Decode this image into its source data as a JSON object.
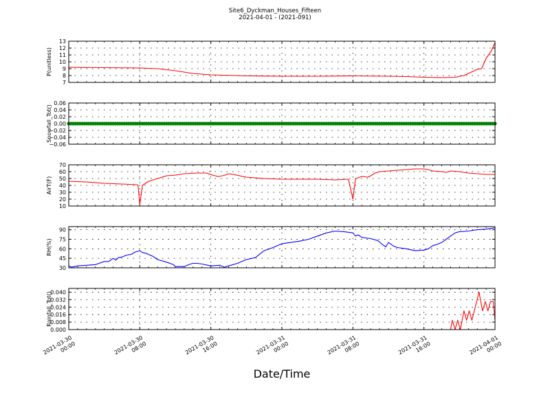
{
  "header": {
    "title": "Site6_Dyckman_Houses_Fifteen",
    "subtitle": "2021-04-01 - (2021-091)"
  },
  "xlabel": "Date/Time",
  "chart_data": {
    "type": "line",
    "x_ticks": [
      {
        "line1": "2021-03-30",
        "line2": "00:00",
        "h": 0
      },
      {
        "line1": "2021-03-30",
        "line2": "08:00",
        "h": 8
      },
      {
        "line1": "2021-03-30",
        "line2": "16:00",
        "h": 16
      },
      {
        "line1": "2021-03-31",
        "line2": "00:00",
        "h": 24
      },
      {
        "line1": "2021-03-31",
        "line2": "08:00",
        "h": 32
      },
      {
        "line1": "2021-03-31",
        "line2": "16:00",
        "h": 40
      },
      {
        "line1": "2021-04-01",
        "line2": "00:00",
        "h": 48
      }
    ],
    "xlim_hours": [
      0,
      48
    ],
    "panels": [
      {
        "ylabel": "P(unitless)",
        "color": "#ff0000",
        "ylim": [
          7,
          13
        ],
        "yticks": [
          "7",
          "8",
          "9",
          "10",
          "11",
          "12",
          "13"
        ],
        "ytick_values": [
          7,
          8,
          9,
          10,
          11,
          12,
          13
        ],
        "points": [
          [
            0,
            9.2
          ],
          [
            4,
            9.15
          ],
          [
            8,
            9.1
          ],
          [
            10,
            9.0
          ],
          [
            12,
            8.7
          ],
          [
            14,
            8.3
          ],
          [
            16,
            8.1
          ],
          [
            20,
            7.95
          ],
          [
            24,
            7.9
          ],
          [
            28,
            7.9
          ],
          [
            32,
            7.95
          ],
          [
            36,
            7.9
          ],
          [
            38,
            7.85
          ],
          [
            40,
            7.75
          ],
          [
            42,
            7.7
          ],
          [
            43.5,
            7.75
          ],
          [
            44.5,
            8.0
          ],
          [
            45.5,
            8.6
          ],
          [
            46,
            8.9
          ],
          [
            46.5,
            9.0
          ],
          [
            47,
            10.5
          ],
          [
            47.6,
            11.6
          ],
          [
            48,
            12.8
          ]
        ]
      },
      {
        "ylabel": "Snowfall_Tot()",
        "color": "#008000",
        "style": "markers",
        "ylim": [
          -0.06,
          0.06
        ],
        "yticks": [
          "−0.06",
          "−0.04",
          "−0.02",
          "0.00",
          "0.02",
          "0.04",
          "0.06"
        ],
        "ytick_values": [
          -0.06,
          -0.04,
          -0.02,
          0,
          0.02,
          0.04,
          0.06
        ],
        "points": [
          [
            0,
            0
          ],
          [
            48,
            0
          ]
        ]
      },
      {
        "ylabel": "AirT(F)",
        "color": "#ff0000",
        "ylim": [
          10,
          70
        ],
        "yticks": [
          "10",
          "20",
          "30",
          "40",
          "50",
          "60",
          "70"
        ],
        "ytick_values": [
          10,
          20,
          30,
          40,
          50,
          60,
          70
        ],
        "points": [
          [
            0,
            46
          ],
          [
            2,
            45
          ],
          [
            4,
            43
          ],
          [
            6,
            42
          ],
          [
            7.7,
            41
          ],
          [
            7.8,
            40
          ],
          [
            8,
            12
          ],
          [
            8.3,
            40
          ],
          [
            9,
            46
          ],
          [
            10,
            50
          ],
          [
            11,
            54
          ],
          [
            12,
            55
          ],
          [
            13,
            57
          ],
          [
            14.5,
            58
          ],
          [
            15.5,
            58
          ],
          [
            16.2,
            55
          ],
          [
            16.8,
            53
          ],
          [
            17.3,
            54
          ],
          [
            17.6,
            55
          ],
          [
            18,
            57
          ],
          [
            18.5,
            56
          ],
          [
            20,
            52
          ],
          [
            22,
            50
          ],
          [
            24,
            49
          ],
          [
            26,
            49
          ],
          [
            28,
            49
          ],
          [
            30,
            48
          ],
          [
            31.5,
            49
          ],
          [
            32,
            20
          ],
          [
            32.3,
            50
          ],
          [
            33,
            53
          ],
          [
            33.7,
            52
          ],
          [
            34,
            54
          ],
          [
            34.5,
            58
          ],
          [
            35,
            60
          ],
          [
            36,
            61
          ],
          [
            37,
            62
          ],
          [
            38,
            63
          ],
          [
            39,
            64
          ],
          [
            40,
            64
          ],
          [
            40.5,
            63
          ],
          [
            41,
            61
          ],
          [
            42,
            60
          ],
          [
            42.5,
            59
          ],
          [
            43,
            61
          ],
          [
            44,
            60
          ],
          [
            45,
            58
          ],
          [
            46,
            57
          ],
          [
            47,
            56
          ],
          [
            48,
            56
          ]
        ]
      },
      {
        "ylabel": "RH(%)",
        "color": "#0000ff",
        "ylim": [
          30,
          95
        ],
        "yticks": [
          "30",
          "45",
          "60",
          "75",
          "90"
        ],
        "ytick_values": [
          30,
          45,
          60,
          75,
          90
        ],
        "points": [
          [
            0,
            33
          ],
          [
            0.3,
            31
          ],
          [
            1,
            33
          ],
          [
            3,
            35
          ],
          [
            4,
            40
          ],
          [
            4.5,
            40
          ],
          [
            5,
            45
          ],
          [
            5.3,
            42
          ],
          [
            5.6,
            46
          ],
          [
            6,
            47
          ],
          [
            6.5,
            50
          ],
          [
            7,
            51
          ],
          [
            7.5,
            55
          ],
          [
            8,
            57
          ],
          [
            8.3,
            54
          ],
          [
            8.7,
            53
          ],
          [
            9,
            51
          ],
          [
            9.5,
            48
          ],
          [
            10,
            43
          ],
          [
            11,
            39
          ],
          [
            11.8,
            35
          ],
          [
            12,
            32
          ],
          [
            12.5,
            32
          ],
          [
            13,
            32
          ],
          [
            13.5,
            35
          ],
          [
            14,
            37
          ],
          [
            14.5,
            37
          ],
          [
            15,
            36
          ],
          [
            16,
            33
          ],
          [
            17,
            34
          ],
          [
            17.5,
            31
          ],
          [
            18,
            33
          ],
          [
            19,
            37
          ],
          [
            20,
            43
          ],
          [
            21,
            46
          ],
          [
            22,
            57
          ],
          [
            23,
            62
          ],
          [
            24,
            68
          ],
          [
            25,
            70
          ],
          [
            26,
            72
          ],
          [
            27,
            75
          ],
          [
            28,
            80
          ],
          [
            29,
            85
          ],
          [
            30,
            88
          ],
          [
            31,
            87
          ],
          [
            32,
            85
          ],
          [
            32.3,
            80
          ],
          [
            32.6,
            82
          ],
          [
            33,
            78
          ],
          [
            34,
            76
          ],
          [
            34.8,
            73
          ],
          [
            35.2,
            68
          ],
          [
            35.7,
            63
          ],
          [
            36,
            70
          ],
          [
            36.5,
            65
          ],
          [
            37,
            62
          ],
          [
            38,
            60
          ],
          [
            39,
            57
          ],
          [
            40,
            58
          ],
          [
            40.5,
            60
          ],
          [
            41,
            65
          ],
          [
            41.5,
            67
          ],
          [
            42,
            70
          ],
          [
            42.5,
            75
          ],
          [
            43,
            80
          ],
          [
            43.5,
            85
          ],
          [
            44,
            87
          ],
          [
            45,
            88
          ],
          [
            46,
            90
          ],
          [
            47,
            91
          ],
          [
            48,
            93
          ]
        ]
      },
      {
        "ylabel": "Rainfall_Tot()",
        "color": "#ff0000",
        "ylim": [
          0,
          0.044
        ],
        "yticks": [
          "0.000",
          "0.008",
          "0.016",
          "0.024",
          "0.032",
          "0.040"
        ],
        "ytick_values": [
          0,
          0.008,
          0.016,
          0.024,
          0.032,
          0.04
        ],
        "points": [
          [
            0,
            0
          ],
          [
            43,
            0
          ],
          [
            43.2,
            0.01
          ],
          [
            43.5,
            0
          ],
          [
            43.8,
            0.01
          ],
          [
            44.1,
            0
          ],
          [
            44.5,
            0.02
          ],
          [
            44.8,
            0.01
          ],
          [
            45.1,
            0.02
          ],
          [
            45.4,
            0.01
          ],
          [
            46.2,
            0.04
          ],
          [
            46.6,
            0.02
          ],
          [
            46.9,
            0.03
          ],
          [
            47.2,
            0.02
          ],
          [
            47.5,
            0.03
          ],
          [
            47.8,
            0.03
          ],
          [
            48,
            0.01
          ]
        ]
      }
    ]
  }
}
